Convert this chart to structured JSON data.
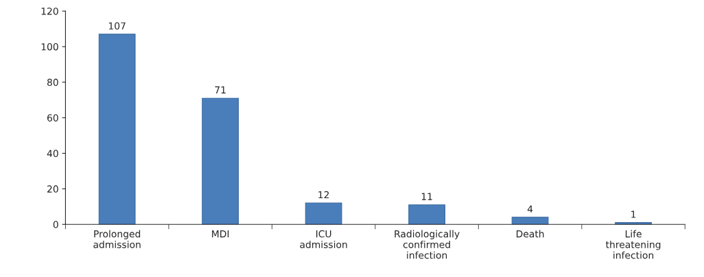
{
  "chart_data": {
    "type": "bar",
    "categories": [
      "Prolonged\nadmission",
      "MDI",
      "ICU\nadmission",
      "Radiologically\nconfirmed\ninfection",
      "Death",
      "Life\nthreatening\ninfection"
    ],
    "values": [
      107,
      71,
      12,
      11,
      4,
      1
    ],
    "color": "#4a7ebb",
    "ylim": [
      0,
      120
    ],
    "yticks": [
      0,
      20,
      40,
      60,
      80,
      100,
      120
    ],
    "grid": false,
    "data_labels": true
  }
}
